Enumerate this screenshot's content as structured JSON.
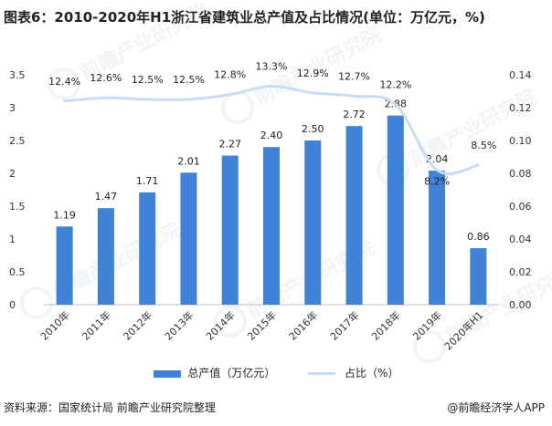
{
  "title": "图表6：2010-2020年H1浙江省建筑业总产值及占比情况(单位：万亿元，%)",
  "source": "资料来源：国家统计局 前瞻产业研究院整理",
  "brand": "@前瞻经济学人APP",
  "colors": {
    "bar": "#3f82d8",
    "line": "#c7dcf5",
    "axis": "#bfbfbf",
    "text": "#222222"
  },
  "legend": {
    "bar_label": "总产值（万亿元）",
    "line_label": "占比（%）"
  },
  "chart_data": {
    "type": "bar",
    "categories": [
      "2010年",
      "2011年",
      "2012年",
      "2013年",
      "2014年",
      "2015年",
      "2016年",
      "2017年",
      "2018年",
      "2019年",
      "2020年H1"
    ],
    "series": [
      {
        "name": "总产值（万亿元）",
        "type": "bar",
        "axis": "left",
        "values": [
          1.19,
          1.47,
          1.71,
          2.01,
          2.27,
          2.4,
          2.5,
          2.72,
          2.88,
          2.04,
          0.86
        ],
        "labels": [
          "1.19",
          "1.47",
          "1.71",
          "2.01",
          "2.27",
          "2.40",
          "2.50",
          "2.72",
          "2.88",
          "2.04",
          "0.86"
        ]
      },
      {
        "name": "占比（%）",
        "type": "line",
        "axis": "right",
        "values": [
          0.124,
          0.126,
          0.125,
          0.125,
          0.128,
          0.133,
          0.129,
          0.127,
          0.122,
          0.082,
          0.085
        ],
        "labels": [
          "12.4%",
          "12.6%",
          "12.5%",
          "12.5%",
          "12.8%",
          "13.3%",
          "12.9%",
          "12.7%",
          "12.2%",
          "8.2%",
          "8.5%"
        ]
      }
    ],
    "left_axis": {
      "ylim": [
        0,
        3.5
      ],
      "ticks": [
        "0",
        "0.5",
        "1",
        "1.5",
        "2",
        "2.5",
        "3",
        "3.5"
      ]
    },
    "right_axis": {
      "ylim": [
        0,
        0.14
      ],
      "ticks": [
        "0.00",
        "0.02",
        "0.04",
        "0.06",
        "0.08",
        "0.10",
        "0.12",
        "0.14"
      ]
    },
    "grid": false,
    "legend_position": "bottom"
  }
}
